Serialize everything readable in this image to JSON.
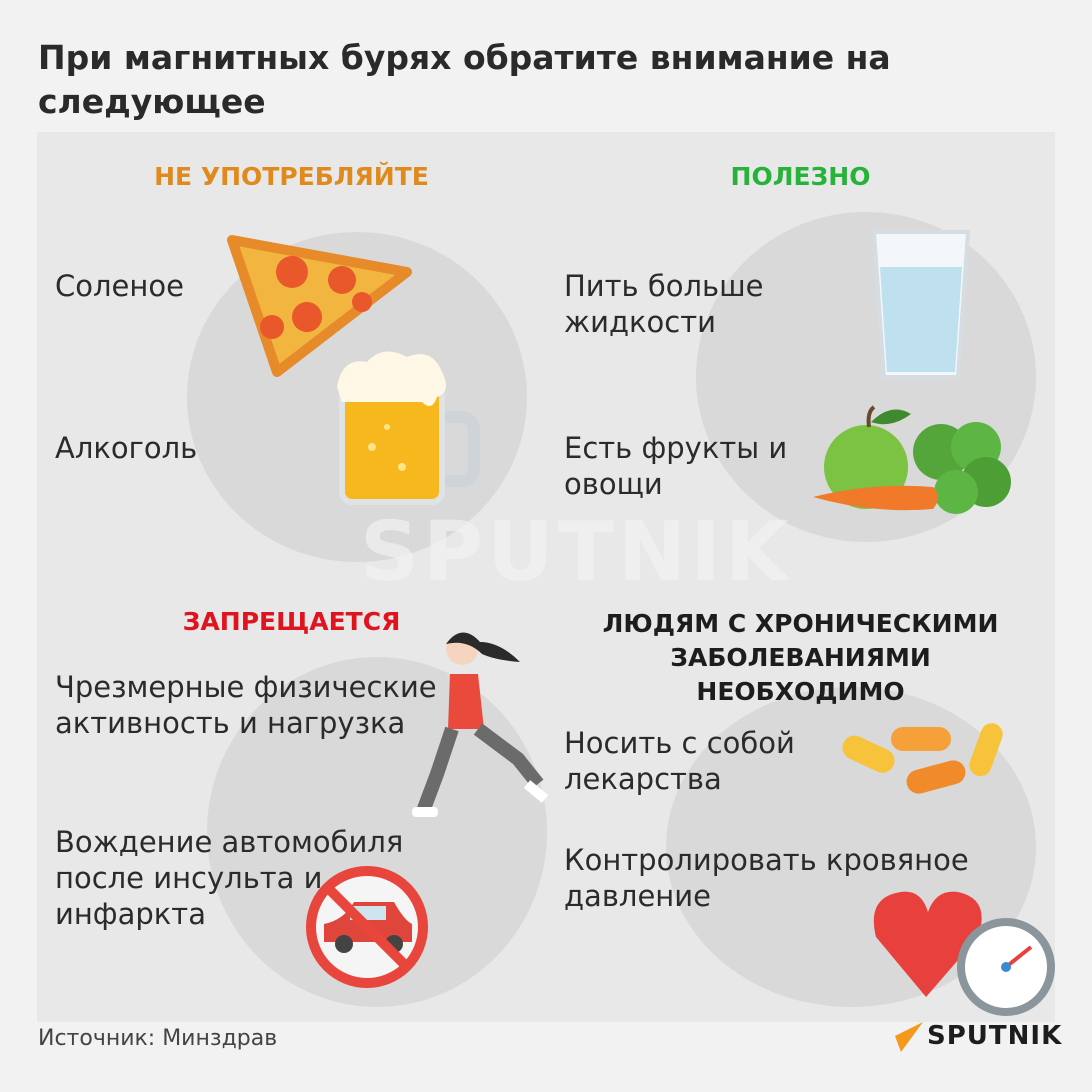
{
  "title": "При магнитных бурях обратите внимание на следующее",
  "colors": {
    "orange": "#e08a1e",
    "green": "#27b23a",
    "red": "#e0141e",
    "dark": "#1d1d1d",
    "panel": "#e8e8e8",
    "background": "#f2f2f2"
  },
  "quadrants": [
    {
      "heading": "НЕ УПОТРЕБЛЯЙТЕ",
      "items": [
        "Соленое",
        "Алкоголь"
      ]
    },
    {
      "heading": "ПОЛЕЗНО",
      "items": [
        "Пить больше жидкости",
        "Есть фрукты и овощи"
      ]
    },
    {
      "heading": "ЗАПРЕЩАЕТСЯ",
      "items": [
        "Чрезмерные физические активность и нагрузка",
        "Вождение автомобиля после инсульта и инфаркта"
      ]
    },
    {
      "heading": "ЛЮДЯМ С ХРОНИЧЕСКИМИ ЗАБОЛЕВАНИЯМИ НЕОБХОДИМО",
      "items": [
        "Носить с собой лекарства",
        "Контролировать кровяное давление"
      ]
    }
  ],
  "illustrations": [
    "pizza-icon",
    "beer-icon",
    "water-glass-icon",
    "fruits-vegetables-icon",
    "running-woman-icon",
    "no-car-icon",
    "pills-icon",
    "heart-pressure-icon"
  ],
  "watermark": "SPUTNIK",
  "source": "Источник: Минздрав",
  "logo": "SPUTNIK"
}
